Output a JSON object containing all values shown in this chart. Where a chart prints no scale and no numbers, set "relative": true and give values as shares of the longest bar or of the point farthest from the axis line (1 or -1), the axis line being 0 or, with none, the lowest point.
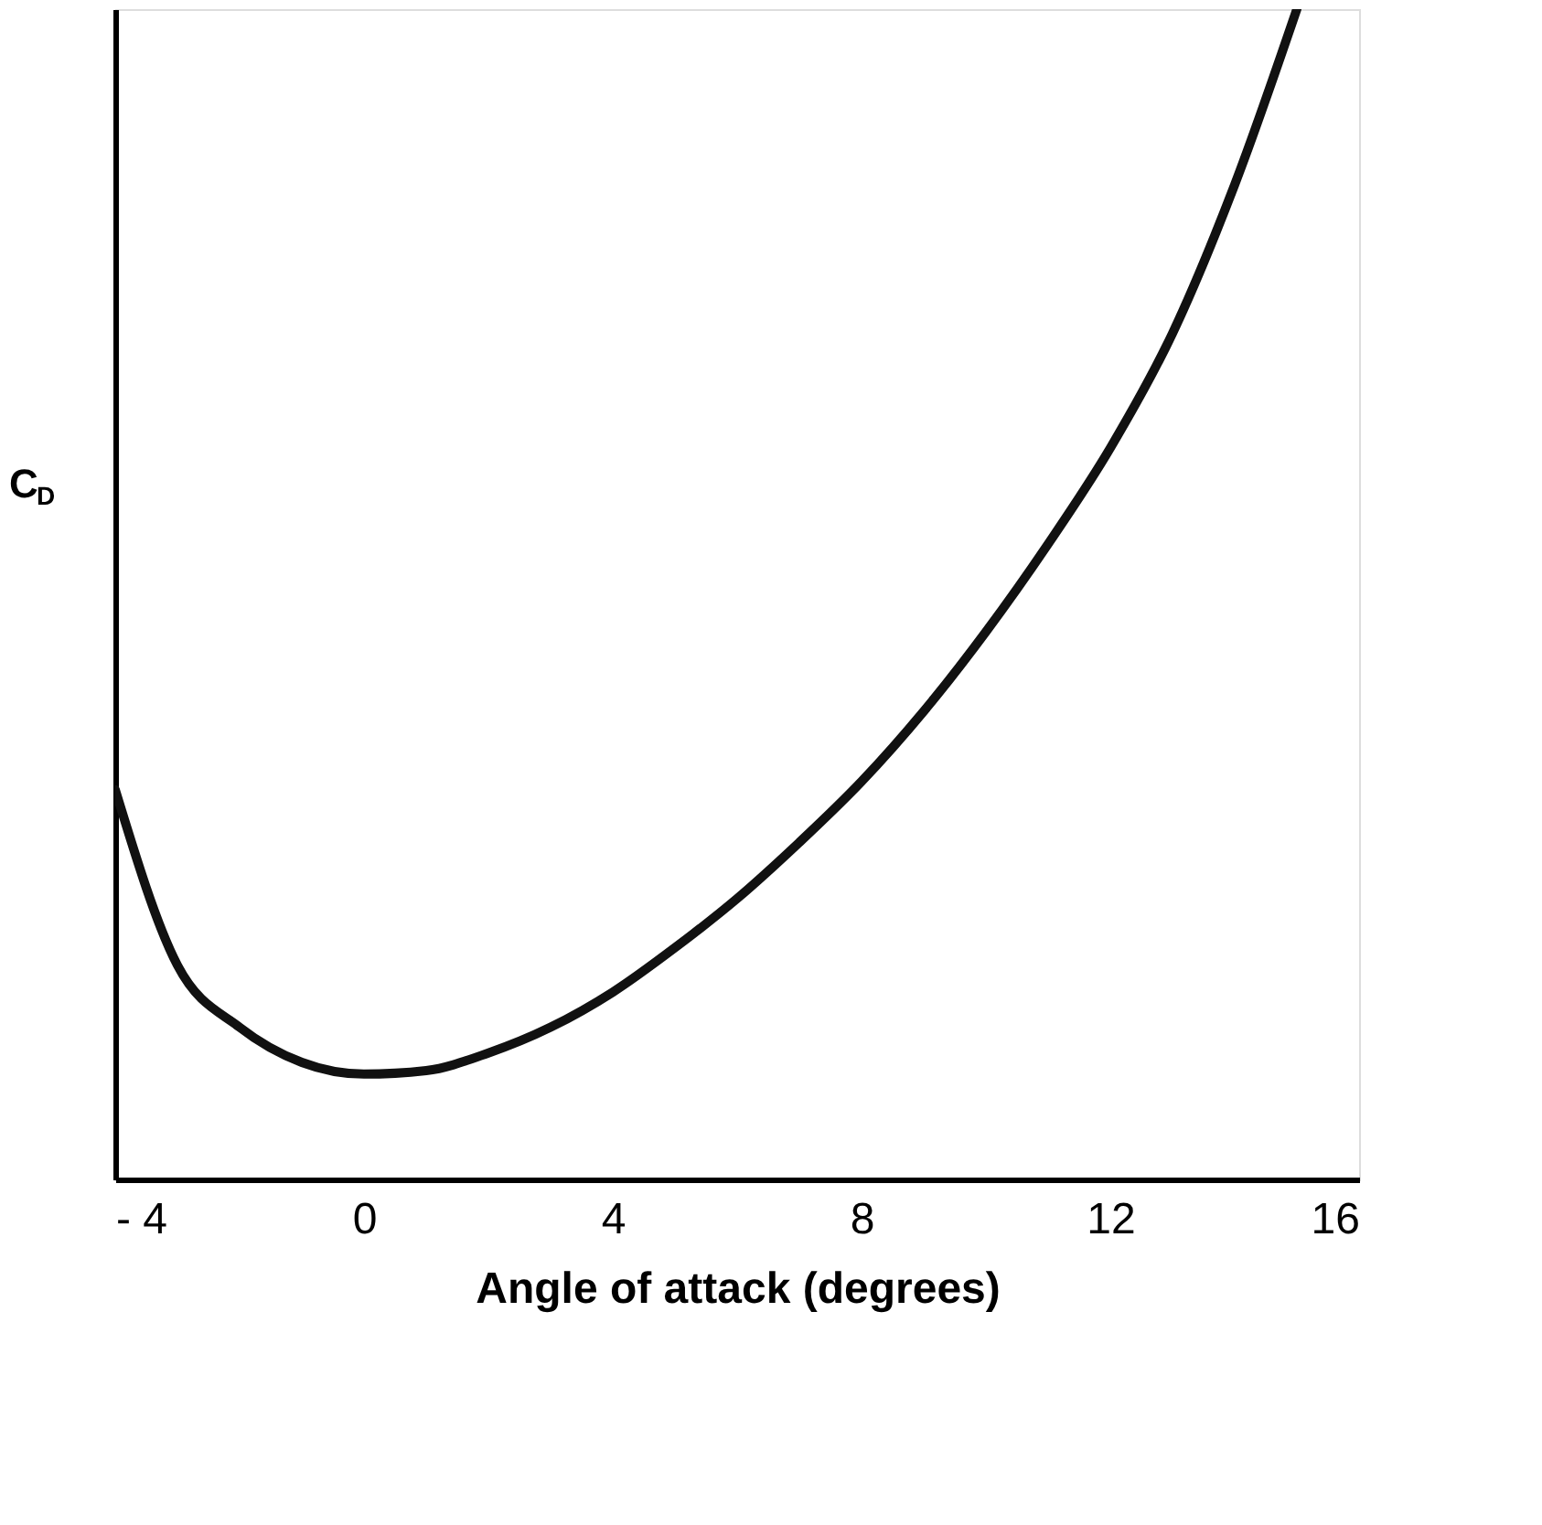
{
  "chart_data": {
    "type": "line",
    "xlabel": "Angle of attack (degrees)",
    "ylabel": "C$_{D}$",
    "relative": true,
    "color": "#111111",
    "xlim": [
      -4,
      16
    ],
    "xticks": [
      {
        "value": -4,
        "label": "- 4"
      },
      0,
      4,
      8,
      12,
      16
    ],
    "grid": false,
    "marker": "none",
    "line_style": "solid",
    "x": [
      -4,
      -3,
      -2,
      -1,
      0,
      1,
      2,
      3,
      4,
      5,
      6,
      7,
      8,
      9,
      10,
      11,
      12,
      13,
      14,
      15
    ],
    "values": [
      0.333,
      0.183,
      0.13,
      0.1,
      0.09,
      0.093,
      0.108,
      0.13,
      0.16,
      0.198,
      0.24,
      0.288,
      0.34,
      0.4,
      0.468,
      0.543,
      0.625,
      0.723,
      0.85,
      1.0
    ]
  }
}
